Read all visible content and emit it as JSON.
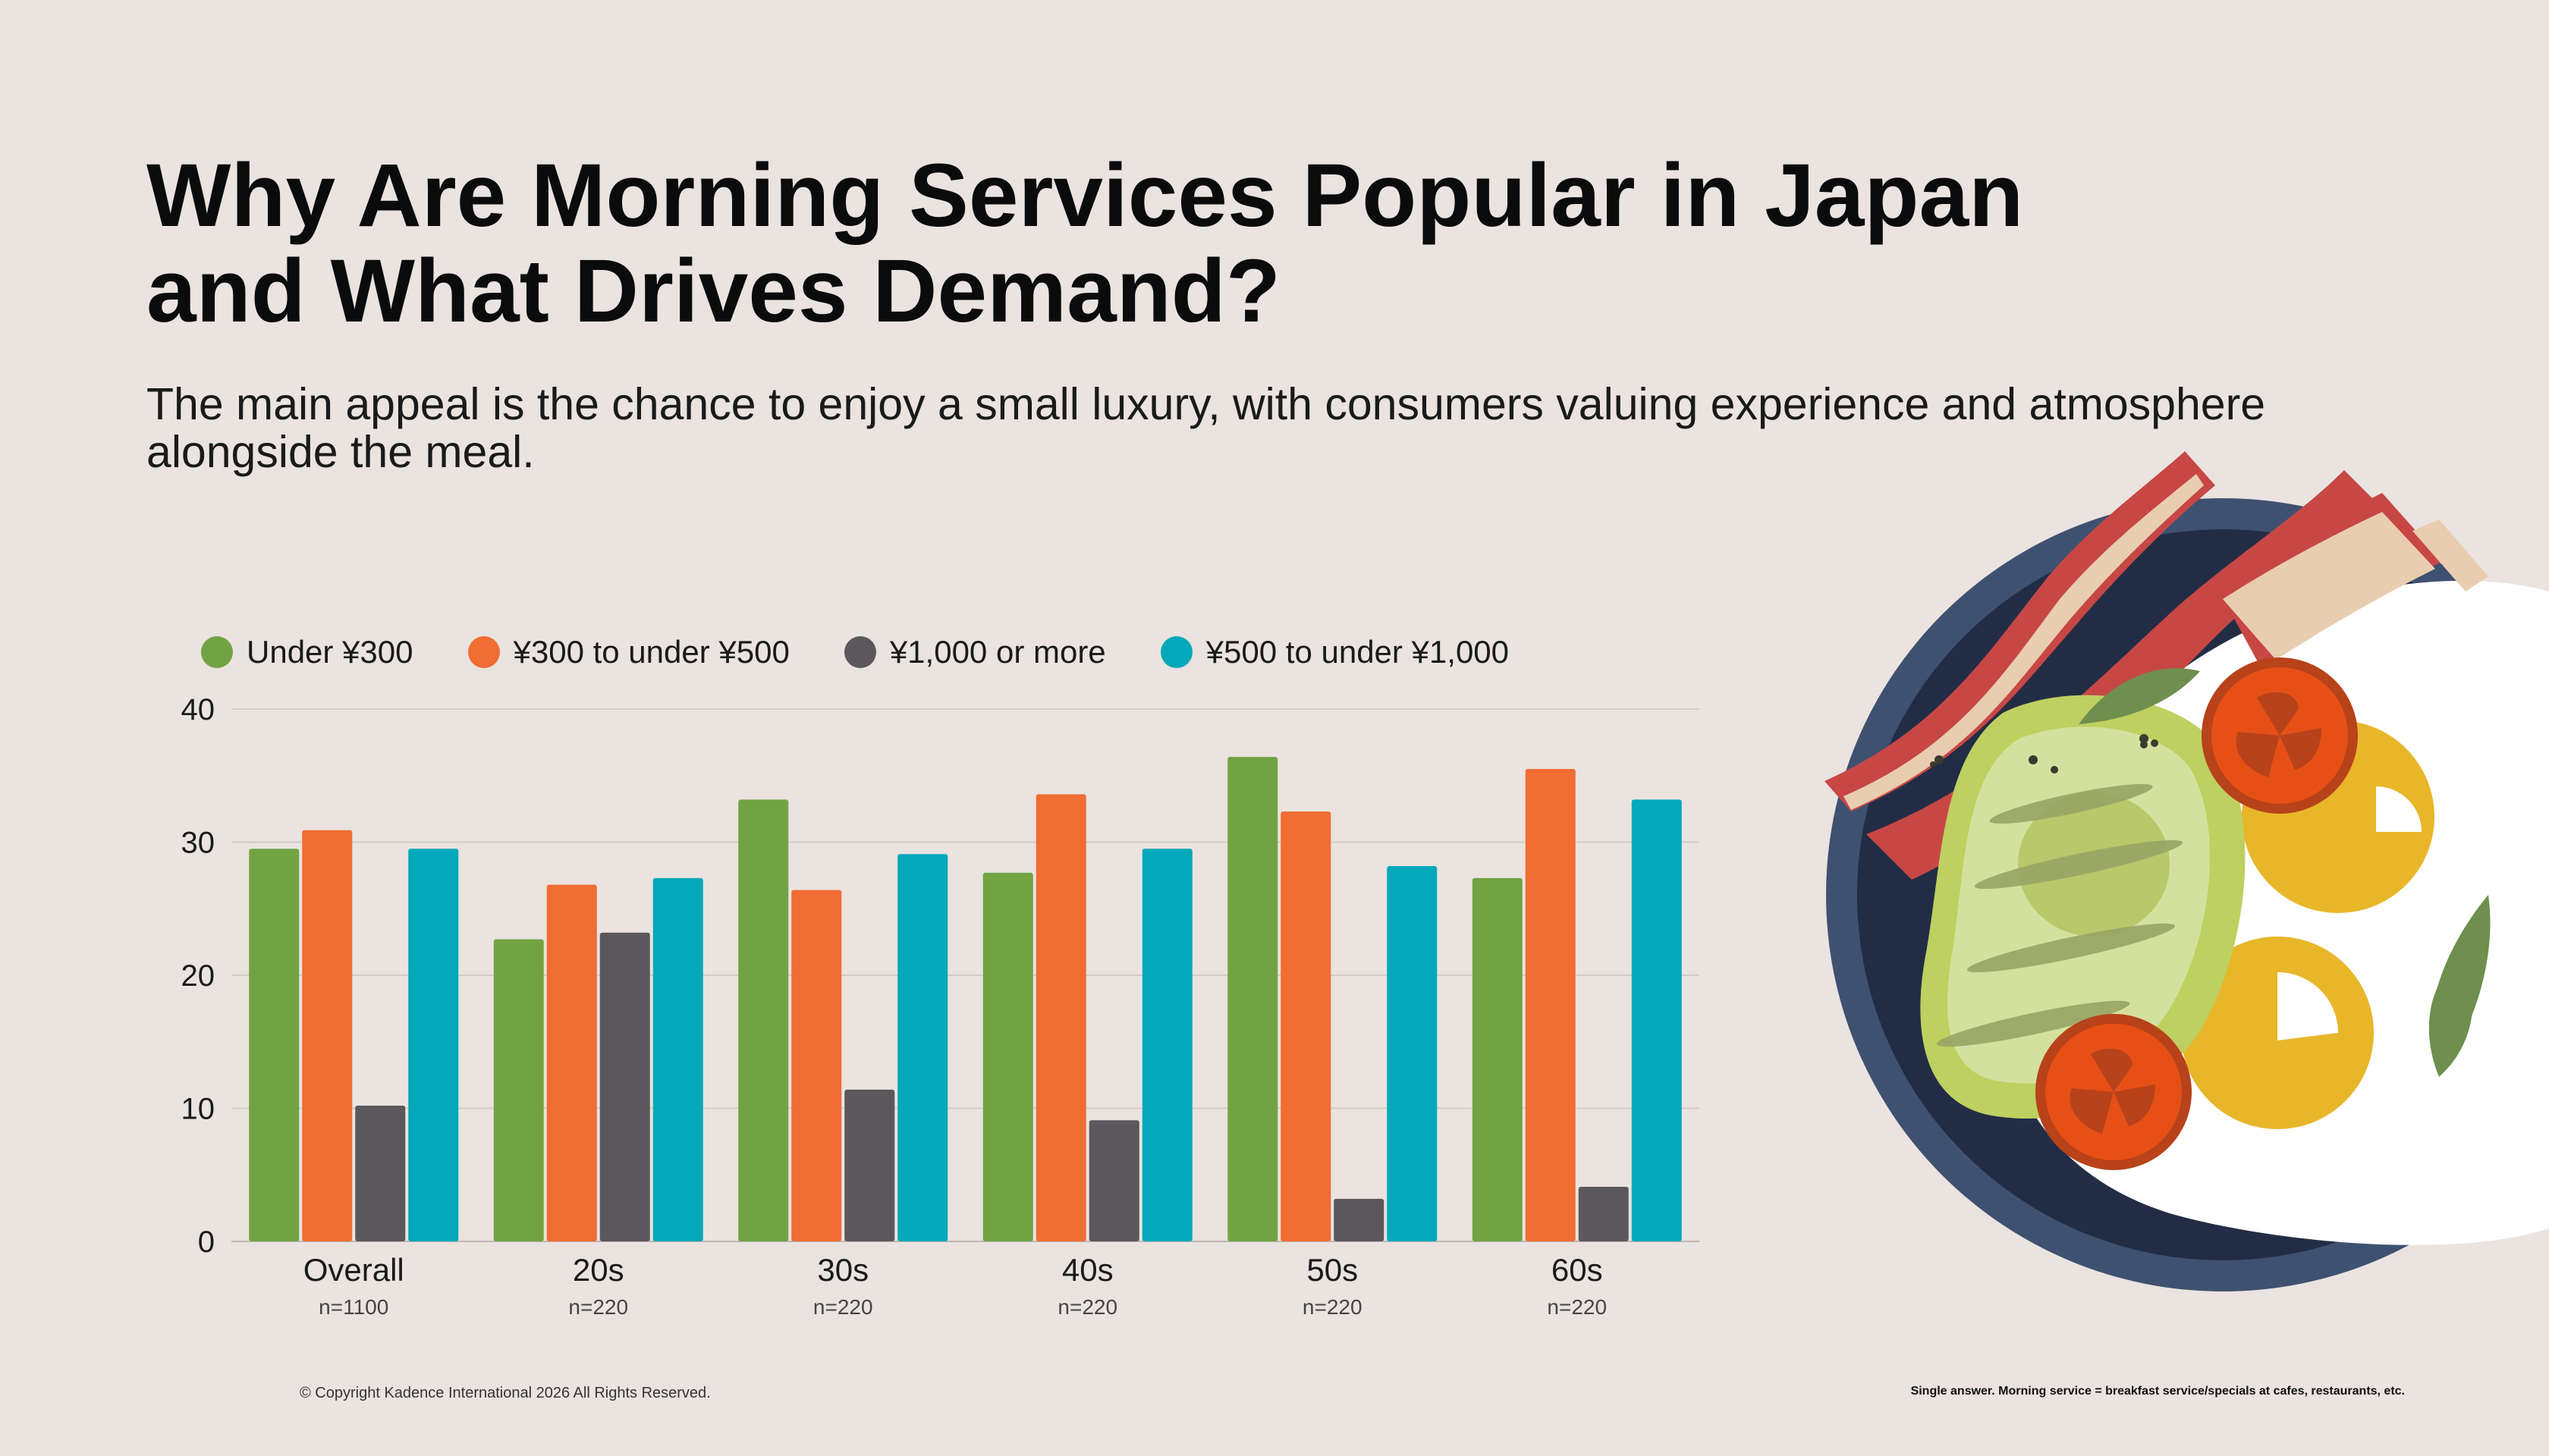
{
  "page": {
    "title": "Why Are Morning Services Popular in Japan and What Drives Demand?",
    "subtitle": "The main appeal is the chance to enjoy a small luxury, with consumers valuing experience and atmosphere alongside the meal.",
    "copyright": "© Copyright Kadence International 2026 All Rights Reserved.",
    "footnote": "Single answer. Morning service = breakfast service/specials at cafes, restaurants, etc."
  },
  "chart_data": {
    "type": "bar",
    "categories": [
      "Overall",
      "20s",
      "30s",
      "40s",
      "50s",
      "60s"
    ],
    "sample_sizes": [
      "n=1100",
      "n=220",
      "n=220",
      "n=220",
      "n=220",
      "n=220"
    ],
    "series": [
      {
        "name": "Under ¥300",
        "color": "#72A343",
        "values": [
          29.5,
          22.7,
          33.2,
          27.7,
          36.4,
          27.3
        ]
      },
      {
        "name": "¥300 to under ¥500",
        "color": "#F06D33",
        "values": [
          30.9,
          26.8,
          26.4,
          33.6,
          32.3,
          35.5
        ]
      },
      {
        "name": "¥1,000 or more",
        "color": "#5A585B",
        "values": [
          10.2,
          23.2,
          11.4,
          9.1,
          3.2,
          4.1
        ]
      },
      {
        "name": "¥500 to under ¥1,000",
        "color": "#03A8B9",
        "values": [
          29.5,
          27.3,
          29.1,
          29.5,
          28.2,
          33.2
        ]
      }
    ],
    "ylim": [
      0,
      40
    ],
    "yticks": [
      "0",
      "10",
      "20",
      "30",
      "40"
    ],
    "grid": true,
    "legend_position": "top-left"
  }
}
